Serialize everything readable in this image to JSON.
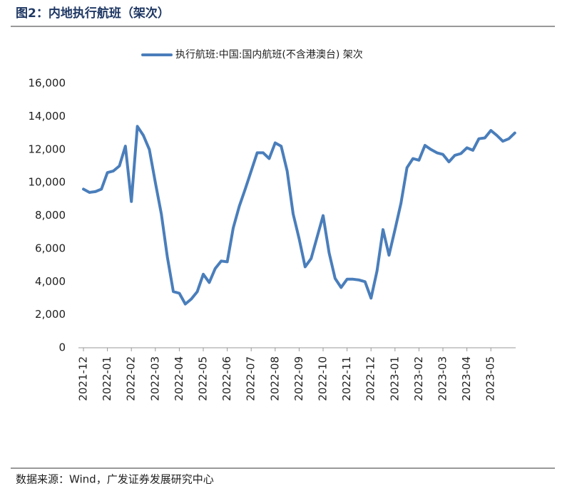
{
  "chart_data": {
    "type": "line",
    "title": "图2：内地执行航班（架次）",
    "source": "数据来源：Wind，广发证券发展研究中心",
    "categories": [
      "2021-12",
      null,
      null,
      null,
      "2022-01",
      null,
      null,
      null,
      "2022-02",
      null,
      null,
      null,
      "2022-03",
      null,
      null,
      null,
      "2022-04",
      null,
      null,
      null,
      "2022-05",
      null,
      null,
      null,
      "2022-06",
      null,
      null,
      null,
      "2022-07",
      null,
      null,
      null,
      "2022-08",
      null,
      null,
      null,
      "2022-09",
      null,
      null,
      null,
      "2022-10",
      null,
      null,
      null,
      "2022-11",
      null,
      null,
      null,
      "2022-12",
      null,
      null,
      null,
      "2023-01",
      null,
      null,
      null,
      "2023-02",
      null,
      null,
      null,
      "2023-03",
      null,
      null,
      null,
      "2023-04",
      null,
      null,
      null,
      "2023-05",
      null,
      null,
      null,
      null
    ],
    "series": [
      {
        "name": "执行航班:中国:国内航班(不含港澳台) 架次",
        "color": "#4a7ebb",
        "values": [
          9600,
          9400,
          9450,
          9600,
          10600,
          10700,
          11000,
          12200,
          8850,
          13400,
          12850,
          12000,
          10000,
          8100,
          5500,
          3400,
          3300,
          2650,
          2950,
          3400,
          4450,
          3950,
          4800,
          5250,
          5200,
          7250,
          8550,
          9600,
          10700,
          11800,
          11800,
          11450,
          12400,
          12200,
          10700,
          8100,
          6600,
          4900,
          5400,
          6700,
          8000,
          5750,
          4200,
          3650,
          4150,
          4150,
          4100,
          4000,
          3000,
          4650,
          7150,
          5600,
          7150,
          8750,
          10900,
          11450,
          11350,
          12250,
          12000,
          11800,
          11700,
          11250,
          11650,
          11750,
          12100,
          11950,
          12650,
          12700,
          13150,
          12850,
          12500,
          12650,
          13000
        ]
      }
    ],
    "ylim": [
      0,
      16000
    ],
    "yticks": [
      0,
      {
        "value": 2000,
        "label": "2,000"
      },
      {
        "value": 4000,
        "label": "4,000"
      },
      {
        "value": 6000,
        "label": "6,000"
      },
      {
        "value": 8000,
        "label": "8,000"
      },
      {
        "value": 10000,
        "label": "10,000"
      },
      {
        "value": 12000,
        "label": "12,000"
      },
      {
        "value": 14000,
        "label": "14,000"
      },
      {
        "value": 16000,
        "label": "16,000"
      }
    ],
    "grid": false,
    "legend": "top"
  }
}
